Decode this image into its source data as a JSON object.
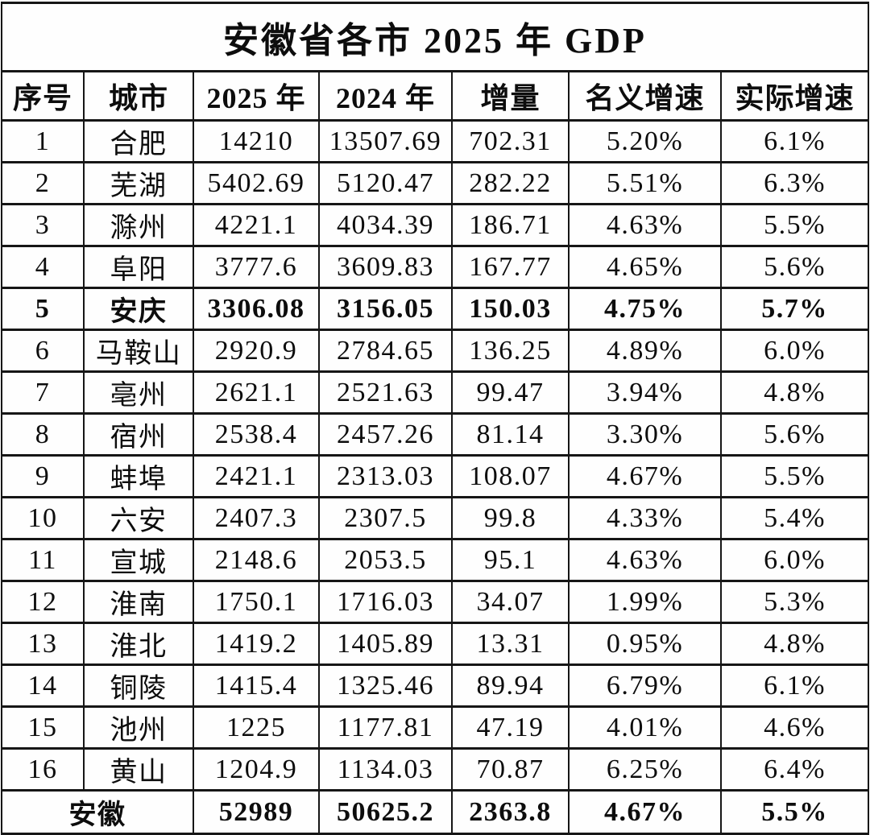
{
  "title": "安徽省各市 2025 年 GDP",
  "chart_data": {
    "type": "table",
    "title": "安徽省各市 2025 年 GDP",
    "columns": [
      "序号",
      "城市",
      "2025 年",
      "2024 年",
      "增量",
      "名义增速",
      "实际增速"
    ],
    "rows": [
      {
        "no": "1",
        "city": "合肥",
        "gdp2025": "14210",
        "gdp2024": "13507.69",
        "increment": "702.31",
        "nominal_growth": "5.20%",
        "real_growth": "6.1%",
        "bold": false
      },
      {
        "no": "2",
        "city": "芜湖",
        "gdp2025": "5402.69",
        "gdp2024": "5120.47",
        "increment": "282.22",
        "nominal_growth": "5.51%",
        "real_growth": "6.3%",
        "bold": false
      },
      {
        "no": "3",
        "city": "滁州",
        "gdp2025": "4221.1",
        "gdp2024": "4034.39",
        "increment": "186.71",
        "nominal_growth": "4.63%",
        "real_growth": "5.5%",
        "bold": false
      },
      {
        "no": "4",
        "city": "阜阳",
        "gdp2025": "3777.6",
        "gdp2024": "3609.83",
        "increment": "167.77",
        "nominal_growth": "4.65%",
        "real_growth": "5.6%",
        "bold": false
      },
      {
        "no": "5",
        "city": "安庆",
        "gdp2025": "3306.08",
        "gdp2024": "3156.05",
        "increment": "150.03",
        "nominal_growth": "4.75%",
        "real_growth": "5.7%",
        "bold": true
      },
      {
        "no": "6",
        "city": "马鞍山",
        "gdp2025": "2920.9",
        "gdp2024": "2784.65",
        "increment": "136.25",
        "nominal_growth": "4.89%",
        "real_growth": "6.0%",
        "bold": false
      },
      {
        "no": "7",
        "city": "亳州",
        "gdp2025": "2621.1",
        "gdp2024": "2521.63",
        "increment": "99.47",
        "nominal_growth": "3.94%",
        "real_growth": "4.8%",
        "bold": false
      },
      {
        "no": "8",
        "city": "宿州",
        "gdp2025": "2538.4",
        "gdp2024": "2457.26",
        "increment": "81.14",
        "nominal_growth": "3.30%",
        "real_growth": "5.6%",
        "bold": false
      },
      {
        "no": "9",
        "city": "蚌埠",
        "gdp2025": "2421.1",
        "gdp2024": "2313.03",
        "increment": "108.07",
        "nominal_growth": "4.67%",
        "real_growth": "5.5%",
        "bold": false
      },
      {
        "no": "10",
        "city": "六安",
        "gdp2025": "2407.3",
        "gdp2024": "2307.5",
        "increment": "99.8",
        "nominal_growth": "4.33%",
        "real_growth": "5.4%",
        "bold": false
      },
      {
        "no": "11",
        "city": "宣城",
        "gdp2025": "2148.6",
        "gdp2024": "2053.5",
        "increment": "95.1",
        "nominal_growth": "4.63%",
        "real_growth": "6.0%",
        "bold": false
      },
      {
        "no": "12",
        "city": "淮南",
        "gdp2025": "1750.1",
        "gdp2024": "1716.03",
        "increment": "34.07",
        "nominal_growth": "1.99%",
        "real_growth": "5.3%",
        "bold": false
      },
      {
        "no": "13",
        "city": "淮北",
        "gdp2025": "1419.2",
        "gdp2024": "1405.89",
        "increment": "13.31",
        "nominal_growth": "0.95%",
        "real_growth": "4.8%",
        "bold": false
      },
      {
        "no": "14",
        "city": "铜陵",
        "gdp2025": "1415.4",
        "gdp2024": "1325.46",
        "increment": "89.94",
        "nominal_growth": "6.79%",
        "real_growth": "6.1%",
        "bold": false
      },
      {
        "no": "15",
        "city": "池州",
        "gdp2025": "1225",
        "gdp2024": "1177.81",
        "increment": "47.19",
        "nominal_growth": "4.01%",
        "real_growth": "4.6%",
        "bold": false
      },
      {
        "no": "16",
        "city": "黄山",
        "gdp2025": "1204.9",
        "gdp2024": "1134.03",
        "increment": "70.87",
        "nominal_growth": "6.25%",
        "real_growth": "6.4%",
        "bold": false
      }
    ],
    "total": {
      "label": "安徽",
      "gdp2025": "52989",
      "gdp2024": "50625.2",
      "increment": "2363.8",
      "nominal_growth": "4.67%",
      "real_growth": "5.5%"
    }
  },
  "colors": {
    "border": "#161616",
    "text": "#0d0d0d",
    "background": "#fefefe"
  }
}
